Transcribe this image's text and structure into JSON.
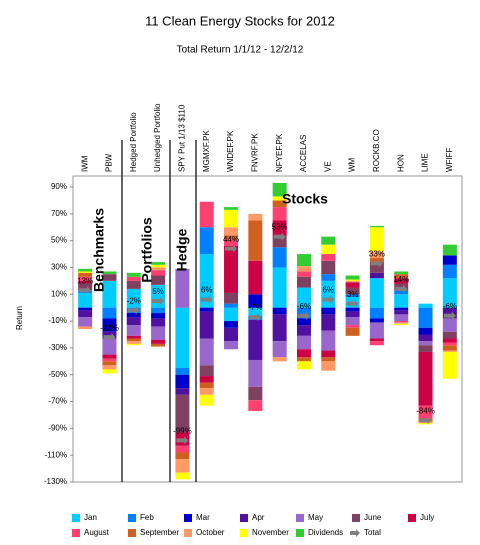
{
  "chart_data": {
    "type": "bar",
    "stacked": true,
    "title": "11 Clean Energy Stocks for 2012",
    "subtitle": "Total Return 1/1/12 - 12/2/12",
    "y_label": "Return",
    "categories": [
      "IWM",
      "PBW",
      "Hedged Portfolio",
      "Unhedged Portfolio",
      "SPY Put 1/13 $110",
      "MGMXF.PK",
      "WNDEF.PK",
      "FNVRF.PK",
      "NFYEF.PK",
      "ACCELAS",
      "VE",
      "WM",
      "ROCKB.CO",
      "HON",
      "LIME",
      "WFIFF"
    ],
    "series": [
      {
        "name": "Jan",
        "color": "#00ccff",
        "values": [
          11,
          20,
          14,
          17,
          -45,
          40,
          -10,
          -6,
          30,
          15,
          20,
          8,
          22,
          10,
          3,
          22
        ]
      },
      {
        "name": "Feb",
        "color": "#0080ff",
        "values": [
          2,
          -8,
          -4,
          -4,
          -5,
          20,
          3,
          -3,
          15,
          -8,
          5,
          2,
          -8,
          3,
          -15,
          10
        ]
      },
      {
        "name": "Mar",
        "color": "#0000cc",
        "values": [
          -2,
          -10,
          -3,
          -4,
          -10,
          -3,
          -5,
          10,
          -5,
          -5,
          -5,
          -3,
          -3,
          -2,
          -5,
          7
        ]
      },
      {
        "name": "Apr",
        "color": "#5010a0",
        "values": [
          -5,
          -5,
          -6,
          -6,
          -5,
          -20,
          -10,
          -30,
          -20,
          -8,
          -12,
          -4,
          4,
          -3,
          -5,
          -8
        ]
      },
      {
        "name": "May",
        "color": "#9966cc",
        "values": [
          -7,
          -12,
          -8,
          -10,
          29,
          -20,
          -6,
          -20,
          -12,
          -10,
          -15,
          -6,
          -12,
          -5,
          -3,
          -10
        ]
      },
      {
        "name": "June",
        "color": "#804060",
        "values": [
          5,
          5,
          6,
          7,
          -28,
          -8,
          8,
          -10,
          8,
          8,
          10,
          5,
          8,
          5,
          -5,
          -5
        ]
      },
      {
        "name": "July",
        "color": "#cc0044",
        "values": [
          2,
          -3,
          -2,
          -3,
          -10,
          -5,
          35,
          25,
          12,
          -6,
          -5,
          4,
          -2,
          4,
          -40,
          -3
        ]
      },
      {
        "name": "August",
        "color": "#ff4070",
        "values": [
          3,
          -2,
          3,
          4,
          -5,
          19,
          5,
          -8,
          10,
          4,
          5,
          -2,
          -3,
          -1,
          -10,
          -2
        ]
      },
      {
        "name": "September",
        "color": "#d06020",
        "values": [
          3,
          -3,
          -2,
          -2,
          -5,
          -4,
          3,
          30,
          5,
          -3,
          -3,
          -6,
          3,
          3,
          -2,
          -4
        ]
      },
      {
        "name": "October",
        "color": "#ff9966",
        "values": [
          -2,
          -3,
          -2,
          2,
          -10,
          -5,
          6,
          5,
          -3,
          4,
          -7,
          1,
          5,
          -1,
          -1,
          -1
        ]
      },
      {
        "name": "November",
        "color": "#ffff00",
        "values": [
          1,
          -3,
          -1,
          2,
          -5,
          -8,
          13,
          0,
          3,
          -6,
          7,
          1,
          18,
          -1,
          -1,
          -20
        ]
      },
      {
        "name": "Dividends",
        "color": "#33cc33",
        "values": [
          2,
          2,
          3,
          2,
          0,
          0,
          2,
          0,
          10,
          9,
          6,
          3,
          1,
          2,
          0,
          8
        ]
      },
      {
        "name": "Total",
        "color": "#808080",
        "marker": true,
        "values": [
          13,
          -22,
          -2,
          5,
          -99,
          6,
          44,
          -7,
          53,
          -6,
          6,
          3,
          33,
          14,
          -84,
          -6
        ],
        "value_labels": [
          "13%",
          "-22%",
          "-2%",
          "5%",
          "-99%",
          "6%",
          "44%",
          "-7%",
          "53%",
          "-6%",
          "6%",
          "3%",
          "33%",
          "14%",
          "-84%",
          "-6%"
        ]
      }
    ],
    "ylim": [
      -130,
      90
    ],
    "yticks": [
      {
        "value": -130,
        "label": "-130%"
      },
      {
        "value": -110,
        "label": "-110%"
      },
      {
        "value": -90,
        "label": "-90%"
      },
      {
        "value": -70,
        "label": "-70%"
      },
      {
        "value": -50,
        "label": "-50%"
      },
      {
        "value": -30,
        "label": "-30%"
      },
      {
        "value": -10,
        "label": "-10%"
      },
      {
        "value": 10,
        "label": "10%"
      },
      {
        "value": 30,
        "label": "30%"
      },
      {
        "value": 50,
        "label": "50%"
      },
      {
        "value": 70,
        "label": "70%"
      },
      {
        "value": 90,
        "label": "90%"
      }
    ],
    "annotations": [
      "Benchmarks",
      "Portfolios",
      "Hedge",
      "Stocks"
    ]
  }
}
